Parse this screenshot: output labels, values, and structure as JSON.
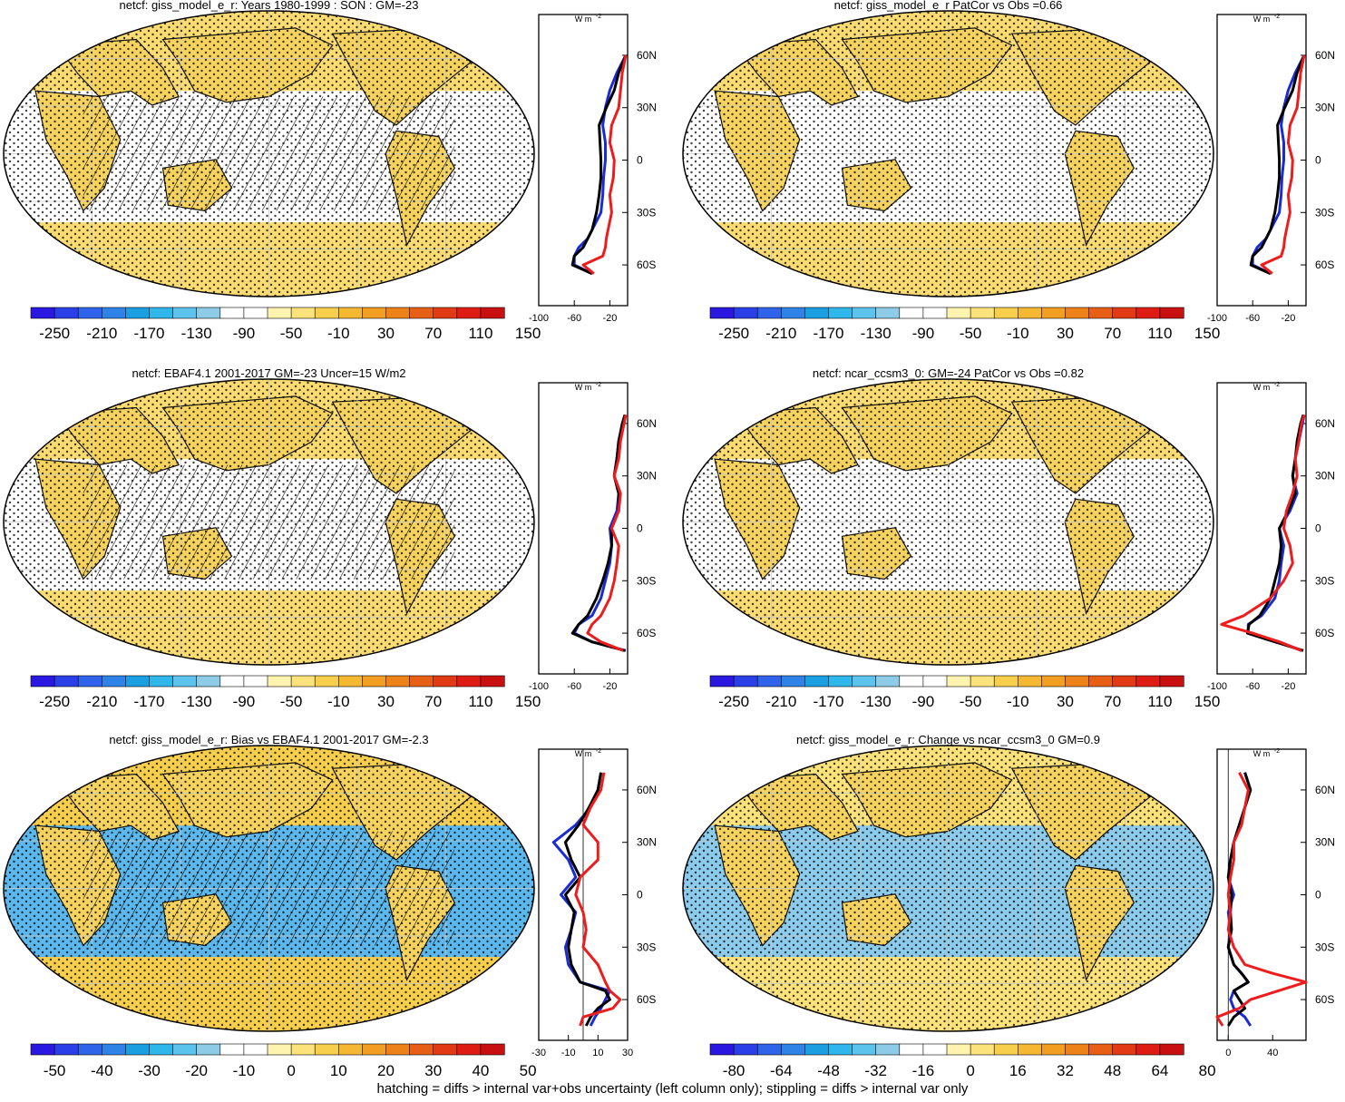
{
  "footer": "hatching = diffs > internal var+obs uncertainty (left column only); stippling = diffs > internal var only",
  "lat_ticks": [
    "60N",
    "30N",
    "0",
    "30S",
    "60S"
  ],
  "unit_label": "W m",
  "unit_sup": "-2",
  "colors": {
    "ocean_white": "#ffffff",
    "land_yellow": "#f6d35e",
    "coast": "#111111",
    "blue_line": "#1a2bd6",
    "black_line": "#000000",
    "red_line": "#ee1c1c"
  },
  "palettes": {
    "abs": [
      "#2a18e0",
      "#2b3fe8",
      "#2f63e9",
      "#2f82e6",
      "#1a9fe0",
      "#2fb6ea",
      "#5cc3ec",
      "#8dcbe6",
      "#ffffff",
      "#ffffff",
      "#fff3b0",
      "#fce27a",
      "#f7cf4c",
      "#f4b832",
      "#f19e22",
      "#ec8218",
      "#e75e15",
      "#e23a14",
      "#df1c14",
      "#c81010"
    ],
    "diff": [
      "#2a18e0",
      "#2b3fe8",
      "#2f63e9",
      "#2f82e6",
      "#1a9fe0",
      "#2fb6ea",
      "#5cc3ec",
      "#8dcbe6",
      "#ffffff",
      "#ffffff",
      "#fff3b0",
      "#fce27a",
      "#f7cf4c",
      "#f4b832",
      "#f19e22",
      "#ec8218",
      "#e75e15",
      "#e23a14",
      "#df1c14",
      "#c81010"
    ]
  },
  "panels": [
    {
      "title": "netcf: giss_model_e_r: Years 1980-1999 : SON : GM=-23",
      "ocean": "#ffffff",
      "land": "#f6d35e",
      "band": "#fadc73",
      "hatch": true,
      "cb_labels": [
        "-250",
        "-210",
        "-170",
        "-130",
        "-90",
        "-50",
        "-10",
        "30",
        "70",
        "110",
        "150"
      ],
      "zonal": {
        "xticks": [
          "-100",
          "-60",
          "-20"
        ],
        "xlim": [
          -100,
          0
        ],
        "ref": null
      }
    },
    {
      "title": "netcf: giss_model_e_r PatCor vs Obs =0.66",
      "ocean": "#ffffff",
      "land": "#f6d35e",
      "band": "#fadc73",
      "hatch": false,
      "cb_labels": [
        "-250",
        "-210",
        "-170",
        "-130",
        "-90",
        "-50",
        "-10",
        "30",
        "70",
        "110",
        "150"
      ],
      "zonal": {
        "xticks": [
          "-100",
          "-60",
          "-20"
        ],
        "xlim": [
          -100,
          0
        ],
        "ref": null
      }
    },
    {
      "title": "netcf: EBAF4.1 2001-2017 GM=-23 Uncer=15 W/m2",
      "ocean": "#ffffff",
      "land": "#f6d35e",
      "band": "#fadc73",
      "hatch": true,
      "cb_labels": [
        "-250",
        "-210",
        "-170",
        "-130",
        "-90",
        "-50",
        "-10",
        "30",
        "70",
        "110",
        "150"
      ],
      "zonal": {
        "xticks": [
          "-100",
          "-60",
          "-20"
        ],
        "xlim": [
          -100,
          0
        ],
        "ref": null
      }
    },
    {
      "title": "netcf: ncar_ccsm3_0: GM=-24 PatCor vs Obs =0.82",
      "ocean": "#ffffff",
      "land": "#f6d35e",
      "band": "#fadc73",
      "hatch": false,
      "cb_labels": [
        "-250",
        "-210",
        "-170",
        "-130",
        "-90",
        "-50",
        "-10",
        "30",
        "70",
        "110",
        "150"
      ],
      "zonal": {
        "xticks": [
          "-100",
          "-60",
          "-20"
        ],
        "xlim": [
          -100,
          0
        ],
        "ref": null
      }
    },
    {
      "title": "netcf: giss_model_e_r: Bias vs EBAF4.1 2001-2017  GM=-2.3",
      "ocean": "#5cb8ec",
      "land": "#f6d35e",
      "band": "#f7cf4c",
      "hatch": true,
      "cb_labels": [
        "-50",
        "-40",
        "-30",
        "-20",
        "-10",
        "0",
        "10",
        "20",
        "30",
        "40",
        "50"
      ],
      "zonal": {
        "xticks": [
          "-30",
          "-10",
          "10",
          "30"
        ],
        "xlim": [
          -30,
          30
        ],
        "ref": 0
      }
    },
    {
      "title": "netcf: giss_model_e_r: Change vs ncar_ccsm3_0 GM=0.9",
      "ocean": "#8ccbeb",
      "land": "#f6d35e",
      "band": "#fce27a",
      "hatch": false,
      "cb_labels": [
        "-80",
        "-64",
        "-48",
        "-32",
        "-16",
        "0",
        "16",
        "32",
        "48",
        "64",
        "80"
      ],
      "zonal": {
        "xticks": [
          "0",
          "40"
        ],
        "xlim": [
          -10,
          70
        ],
        "ref": 0
      }
    }
  ],
  "chart_data": [
    {
      "type": "line",
      "title": "netcf: giss_model_e_r: Years 1980-1999 : SON : GM=-23",
      "ylabel": "",
      "lat": [
        -65,
        -60,
        -55,
        -50,
        -45,
        -40,
        -30,
        -20,
        -10,
        0,
        10,
        20,
        30,
        40,
        50,
        60
      ],
      "series": [
        {
          "values": [
            -40,
            -60,
            -60,
            -55,
            -45,
            -40,
            -30,
            -28,
            -27,
            -25,
            -25,
            -28,
            -25,
            -20,
            -12,
            -2
          ]
        },
        {
          "values": [
            -40,
            -62,
            -60,
            -50,
            -45,
            -40,
            -35,
            -32,
            -30,
            -30,
            -31,
            -32,
            -24,
            -15,
            -10,
            -2
          ]
        },
        {
          "values": [
            -38,
            -50,
            -28,
            -25,
            -24,
            -22,
            -18,
            -20,
            -16,
            -15,
            -20,
            -18,
            -10,
            -8,
            -6,
            -2
          ]
        }
      ]
    },
    {
      "type": "line",
      "title": "netcf: giss_model_e_r PatCor vs Obs =0.66",
      "ylabel": "",
      "lat": [
        -65,
        -60,
        -55,
        -50,
        -45,
        -40,
        -30,
        -20,
        -10,
        0,
        10,
        20,
        30,
        40,
        50,
        60
      ],
      "series": [
        {
          "values": [
            -40,
            -60,
            -60,
            -55,
            -45,
            -40,
            -30,
            -28,
            -27,
            -25,
            -25,
            -28,
            -25,
            -20,
            -12,
            -2
          ]
        },
        {
          "values": [
            -40,
            -62,
            -60,
            -50,
            -45,
            -40,
            -35,
            -32,
            -30,
            -30,
            -31,
            -32,
            -24,
            -15,
            -10,
            -2
          ]
        },
        {
          "values": [
            -38,
            -50,
            -28,
            -25,
            -24,
            -22,
            -18,
            -20,
            -16,
            -15,
            -20,
            -18,
            -10,
            -8,
            -6,
            -2
          ]
        }
      ]
    },
    {
      "type": "line",
      "title": "netcf: EBAF4.1 2001-2017 GM=-23 Uncer=15 W/m2",
      "ylabel": "",
      "lat": [
        -70,
        -65,
        -60,
        -55,
        -50,
        -40,
        -30,
        -20,
        -10,
        0,
        10,
        20,
        30,
        40,
        50,
        60,
        65
      ],
      "series": [
        {
          "values": [
            -2,
            -40,
            -60,
            -55,
            -40,
            -30,
            -25,
            -20,
            -18,
            -20,
            -12,
            -10,
            -15,
            -12,
            -10,
            -5,
            -3
          ]
        },
        {
          "values": [
            -3,
            -40,
            -62,
            -55,
            -45,
            -35,
            -28,
            -22,
            -18,
            -18,
            -10,
            -10,
            -15,
            -12,
            -10,
            -6,
            -3
          ]
        },
        {
          "values": [
            -5,
            -30,
            -45,
            -40,
            -30,
            -20,
            -15,
            -12,
            -10,
            -18,
            -10,
            -8,
            -15,
            -10,
            -8,
            -4,
            -2
          ]
        }
      ]
    },
    {
      "type": "line",
      "title": "netcf: ncar_ccsm3_0: GM=-24 PatCor vs Obs =0.82",
      "ylabel": "",
      "lat": [
        -70,
        -65,
        -60,
        -55,
        -50,
        -40,
        -30,
        -20,
        -10,
        0,
        10,
        20,
        30,
        40,
        50,
        60,
        65
      ],
      "series": [
        {
          "values": [
            -5,
            -30,
            -65,
            -65,
            -50,
            -35,
            -30,
            -28,
            -25,
            -30,
            -18,
            -10,
            -15,
            -12,
            -8,
            -4,
            -2
          ]
        },
        {
          "values": [
            -3,
            -35,
            -66,
            -64,
            -52,
            -40,
            -35,
            -30,
            -28,
            -30,
            -20,
            -12,
            -15,
            -12,
            -10,
            -6,
            -3
          ]
        },
        {
          "values": [
            -5,
            -30,
            -60,
            -95,
            -70,
            -40,
            -25,
            -15,
            -18,
            -25,
            -22,
            -15,
            -10,
            -12,
            -8,
            -5,
            -2
          ]
        }
      ]
    },
    {
      "type": "line",
      "title": "netcf: giss_model_e_r: Bias vs EBAF4.1 2001-2017  GM=-2.3",
      "ylabel": "",
      "lat": [
        -75,
        -70,
        -65,
        -60,
        -55,
        -50,
        -40,
        -30,
        -20,
        -10,
        0,
        10,
        20,
        30,
        40,
        50,
        60,
        70
      ],
      "series": [
        {
          "values": [
            5,
            8,
            12,
            15,
            18,
            -2,
            -10,
            -12,
            -8,
            -5,
            -15,
            -5,
            -10,
            -20,
            -5,
            5,
            10,
            12
          ]
        },
        {
          "values": [
            2,
            5,
            10,
            18,
            15,
            -2,
            -8,
            -10,
            -8,
            -6,
            -12,
            -2,
            -8,
            -12,
            -3,
            4,
            10,
            12
          ]
        },
        {
          "values": [
            -2,
            0,
            20,
            25,
            18,
            15,
            10,
            0,
            2,
            0,
            -5,
            -2,
            10,
            10,
            0,
            5,
            12,
            14
          ]
        }
      ]
    },
    {
      "type": "line",
      "title": "netcf: giss_model_e_r: Change vs ncar_ccsm3_0 GM=0.9",
      "ylabel": "",
      "lat": [
        -75,
        -70,
        -65,
        -60,
        -55,
        -50,
        -45,
        -40,
        -30,
        -20,
        -10,
        0,
        10,
        20,
        30,
        40,
        50,
        60,
        70
      ],
      "series": [
        {
          "values": [
            20,
            15,
            5,
            2,
            5,
            18,
            12,
            5,
            0,
            2,
            0,
            5,
            0,
            2,
            5,
            10,
            15,
            20,
            15
          ]
        },
        {
          "values": [
            0,
            5,
            15,
            10,
            5,
            18,
            12,
            5,
            0,
            3,
            2,
            3,
            0,
            2,
            5,
            10,
            15,
            20,
            15
          ]
        },
        {
          "values": [
            -5,
            -10,
            10,
            20,
            45,
            70,
            40,
            15,
            5,
            0,
            2,
            0,
            2,
            5,
            5,
            12,
            15,
            18,
            10
          ]
        }
      ]
    }
  ]
}
